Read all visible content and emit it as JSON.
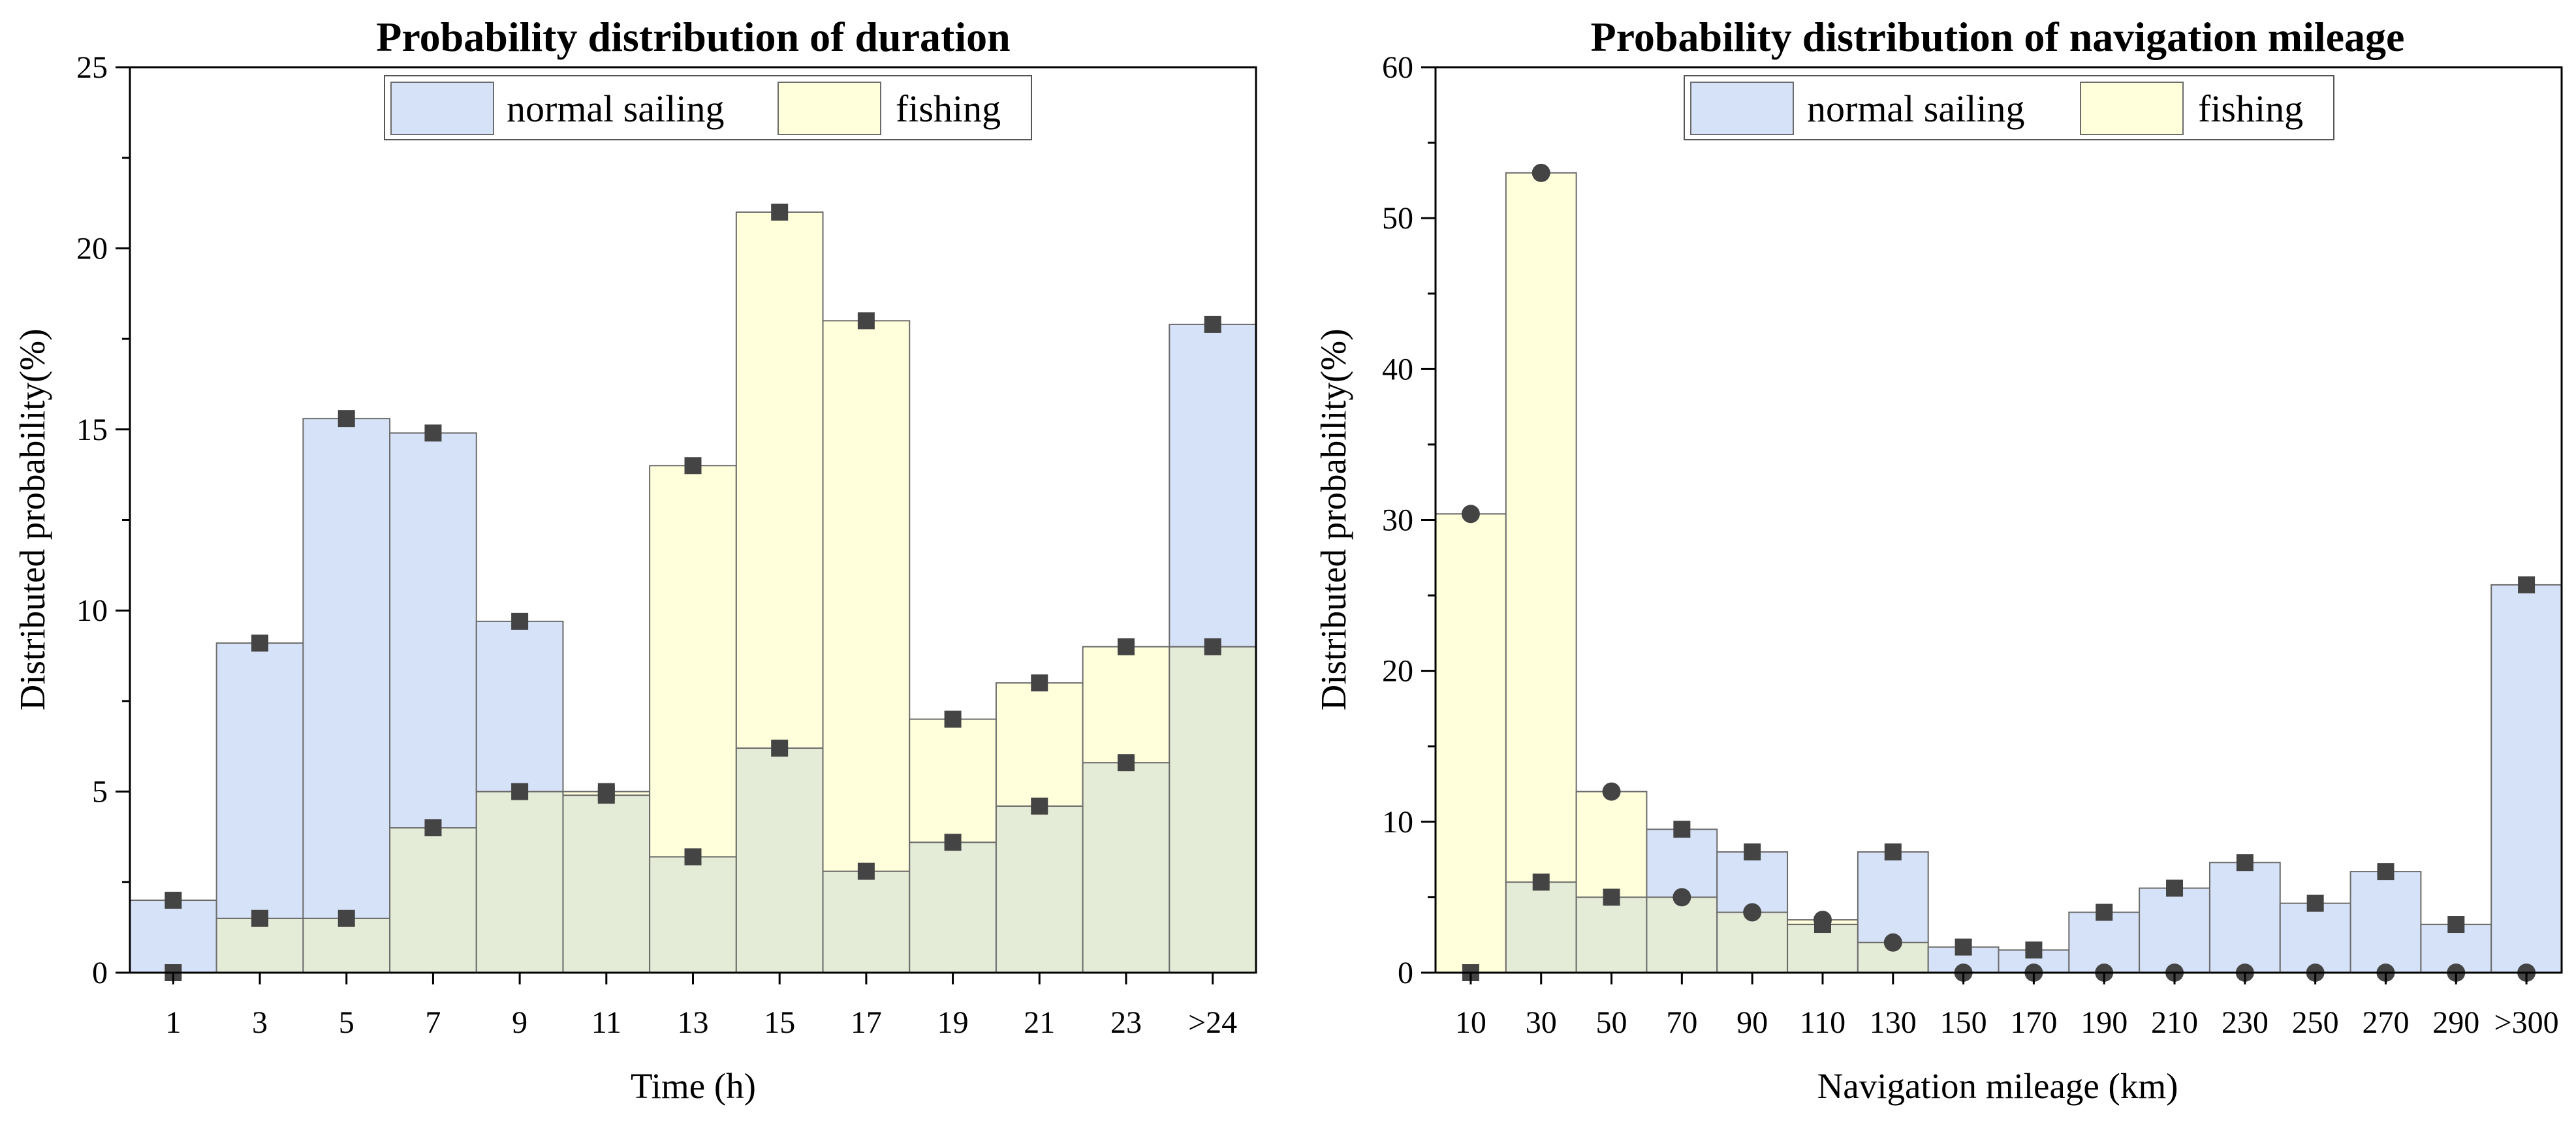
{
  "colors": {
    "normal_sailing_fill": "#d6e2f7",
    "fishing_fill": "#ffffdc",
    "overlap_fill": "#e4ebd6",
    "bar_edge": "#6b6b6b",
    "marker": "#444444"
  },
  "chart_data": [
    {
      "type": "bar",
      "title": "Probability distribution of duration",
      "xlabel": "Time (h)",
      "ylabel": "Distributed probability(%)",
      "ylim": [
        0,
        25
      ],
      "yticks": [
        0,
        5,
        10,
        15,
        20,
        25
      ],
      "grid": false,
      "legend_position": "top-center",
      "categories": [
        "1",
        "3",
        "5",
        "7",
        "9",
        "11",
        "13",
        "15",
        "17",
        "19",
        "21",
        "23",
        ">24"
      ],
      "series": [
        {
          "name": "normal sailing",
          "marker": "square",
          "values": [
            2.0,
            9.1,
            15.3,
            14.9,
            9.7,
            4.9,
            3.2,
            6.2,
            2.8,
            3.6,
            4.6,
            5.8,
            17.9
          ]
        },
        {
          "name": "fishing",
          "marker": "square",
          "values": [
            0.0,
            1.5,
            1.5,
            4.0,
            5.0,
            5.0,
            14.0,
            21.0,
            18.0,
            7.0,
            8.0,
            9.0,
            9.0
          ]
        }
      ]
    },
    {
      "type": "bar",
      "title": "Probability distribution of navigation mileage",
      "xlabel": "Navigation mileage (km)",
      "ylabel": "Distributed probability(%)",
      "ylim": [
        0,
        60
      ],
      "yticks": [
        0,
        10,
        20,
        30,
        40,
        50,
        60
      ],
      "grid": false,
      "legend_position": "top-center",
      "categories": [
        "10",
        "30",
        "50",
        "70",
        "90",
        "110",
        "130",
        "150",
        "170",
        "190",
        "210",
        "230",
        "250",
        "270",
        "290",
        ">300"
      ],
      "series": [
        {
          "name": "normal sailing",
          "marker": "square",
          "values": [
            0.0,
            6.0,
            5.0,
            9.5,
            8.0,
            3.2,
            8.0,
            1.7,
            1.5,
            4.0,
            5.6,
            7.3,
            4.6,
            6.7,
            3.2,
            25.7
          ]
        },
        {
          "name": "fishing",
          "marker": "circle",
          "values": [
            30.4,
            53.0,
            12.0,
            5.0,
            4.0,
            3.5,
            2.0,
            0.0,
            0.0,
            0.0,
            0.0,
            0.0,
            0.0,
            0.0,
            0.0,
            0.0
          ]
        }
      ]
    }
  ]
}
